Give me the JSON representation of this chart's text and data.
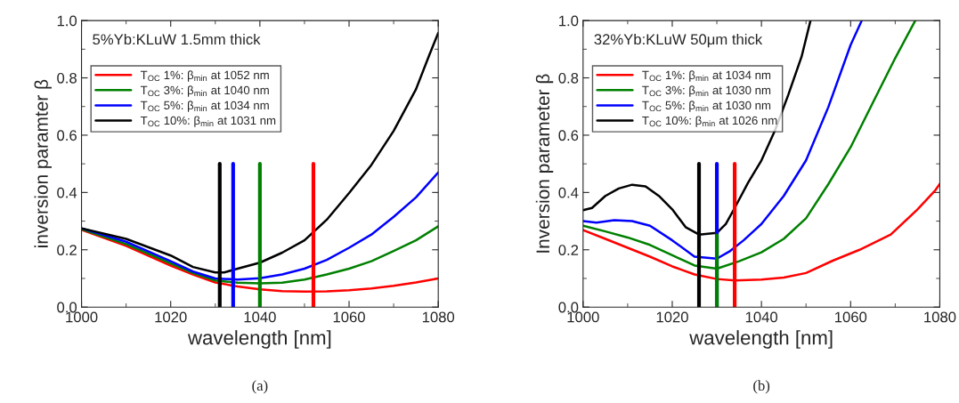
{
  "chart_data": [
    {
      "type": "line",
      "xlabel": "wavelength [nm]",
      "ylabel": "inversion paramter β",
      "annotations": [
        "5%Yb:KLuW 1.5mm thick",
        "(a)"
      ],
      "xlim": [
        1000,
        1080
      ],
      "xticks": [
        1000,
        1020,
        1040,
        1060,
        1080
      ],
      "ylim": [
        0,
        1
      ],
      "yticks": [
        {
          "value": 0,
          "label": "0.0"
        },
        {
          "value": 0.2,
          "label": "0.2"
        },
        {
          "value": 0.4,
          "label": "0.4"
        },
        {
          "value": 0.6,
          "label": "0.6"
        },
        {
          "value": 0.8,
          "label": "0.8"
        },
        {
          "value": 1,
          "label": "1.0"
        }
      ],
      "grid": false,
      "legend": "top left",
      "line_style": "solid",
      "marker": "none",
      "series": [
        {
          "name": "T$_{OC}$ 1%: β$_{min}$ at 1052 nm",
          "color": "#ff0000",
          "x": [
            1000,
            1010,
            1020,
            1025,
            1030,
            1035,
            1040,
            1045,
            1050,
            1055,
            1060,
            1065,
            1070,
            1075,
            1080
          ],
          "values": [
            0.27,
            0.214,
            0.145,
            0.114,
            0.086,
            0.072,
            0.062,
            0.056,
            0.054,
            0.055,
            0.059,
            0.065,
            0.074,
            0.086,
            0.1
          ]
        },
        {
          "name": "T$_{OC}$ 3%: β$_{min}$ at 1040 nm",
          "color": "#008000",
          "x": [
            1000,
            1010,
            1020,
            1025,
            1030,
            1035,
            1040,
            1045,
            1050,
            1055,
            1060,
            1065,
            1070,
            1075,
            1080
          ],
          "values": [
            0.272,
            0.22,
            0.152,
            0.119,
            0.093,
            0.085,
            0.083,
            0.085,
            0.096,
            0.114,
            0.134,
            0.16,
            0.196,
            0.233,
            0.282
          ]
        },
        {
          "name": "T$_{OC}$ 5%: β$_{min}$ at 1034 nm",
          "color": "#0000ff",
          "x": [
            1000,
            1010,
            1020,
            1025,
            1030,
            1035,
            1040,
            1045,
            1050,
            1055,
            1060,
            1065,
            1070,
            1075,
            1080
          ],
          "values": [
            0.275,
            0.228,
            0.16,
            0.124,
            0.1,
            0.096,
            0.101,
            0.114,
            0.134,
            0.165,
            0.207,
            0.253,
            0.315,
            0.383,
            0.47
          ]
        },
        {
          "name": "T$_{OC}$ 10%: β$_{min}$ at 1031 nm",
          "color": "#000000",
          "x": [
            1000,
            1010,
            1020,
            1025,
            1030,
            1032,
            1035,
            1040,
            1045,
            1050,
            1055,
            1060,
            1065,
            1070,
            1075,
            1078,
            1080
          ],
          "values": [
            0.275,
            0.238,
            0.18,
            0.14,
            0.121,
            0.121,
            0.134,
            0.155,
            0.19,
            0.233,
            0.305,
            0.398,
            0.496,
            0.615,
            0.76,
            0.88,
            0.957
          ]
        },
        {
          "color": "#000000",
          "x": [
            1031,
            1031
          ],
          "values": [
            0,
            0.5
          ]
        },
        {
          "color": "#0000ff",
          "x": [
            1034,
            1034
          ],
          "values": [
            0,
            0.5
          ]
        },
        {
          "color": "#008000",
          "x": [
            1040,
            1040
          ],
          "values": [
            0,
            0.5
          ]
        },
        {
          "color": "#ff0000",
          "x": [
            1052,
            1052
          ],
          "values": [
            0,
            0.5
          ]
        }
      ]
    },
    {
      "type": "line",
      "xlabel": "wavelength [nm]",
      "ylabel": "Inversion parameter β",
      "annotations": [
        "32%Yb:KLuW 50μm thick",
        "(b)"
      ],
      "xlim": [
        1000,
        1080
      ],
      "xticks": [
        1000,
        1020,
        1040,
        1060,
        1080
      ],
      "ylim": [
        0,
        1
      ],
      "yticks": [
        {
          "value": 0,
          "label": "0.0"
        },
        {
          "value": 0.2,
          "label": "0.2"
        },
        {
          "value": 0.4,
          "label": "0.4"
        },
        {
          "value": 0.6,
          "label": "0.6"
        },
        {
          "value": 0.8,
          "label": "0.8"
        },
        {
          "value": 1,
          "label": "1.0"
        }
      ],
      "grid": false,
      "legend": "top left",
      "line_style": "solid",
      "marker": "none",
      "series": [
        {
          "name": "T$_{OC}$ 1%: β$_{min}$ at 1034 nm",
          "color": "#ff0000",
          "x": [
            1000,
            1005,
            1010,
            1015,
            1020,
            1025,
            1030,
            1034,
            1040,
            1045,
            1050,
            1056,
            1062,
            1069,
            1075,
            1079,
            1080
          ],
          "values": [
            0.269,
            0.238,
            0.207,
            0.176,
            0.142,
            0.114,
            0.098,
            0.093,
            0.096,
            0.103,
            0.119,
            0.162,
            0.2,
            0.253,
            0.341,
            0.408,
            0.43
          ]
        },
        {
          "name": "T$_{OC}$ 3%: β$_{min}$ at 1030 nm",
          "color": "#008000",
          "x": [
            1000,
            1005,
            1010,
            1015,
            1020,
            1025,
            1030,
            1035,
            1040,
            1045,
            1050,
            1055,
            1060,
            1065,
            1070,
            1074.5
          ],
          "values": [
            0.284,
            0.264,
            0.243,
            0.217,
            0.181,
            0.145,
            0.134,
            0.16,
            0.191,
            0.238,
            0.31,
            0.429,
            0.558,
            0.714,
            0.869,
            1.0
          ]
        },
        {
          "name": "T$_{OC}$ 5%: β$_{min}$ at 1030 nm",
          "color": "#0000ff",
          "x": [
            1000,
            1003,
            1007,
            1011,
            1015,
            1020,
            1025,
            1030,
            1033,
            1036,
            1040,
            1045,
            1050,
            1055,
            1060,
            1062.5
          ],
          "values": [
            0.3,
            0.295,
            0.303,
            0.3,
            0.284,
            0.233,
            0.176,
            0.169,
            0.196,
            0.233,
            0.29,
            0.388,
            0.512,
            0.698,
            0.915,
            1.0
          ]
        },
        {
          "name": "T$_{OC}$ 10%: β$_{min}$ at 1026 nm",
          "color": "#000000",
          "x": [
            1000,
            1002,
            1005,
            1008,
            1011,
            1014,
            1017,
            1020,
            1023,
            1026,
            1030,
            1032,
            1034,
            1037,
            1040,
            1043,
            1046,
            1049,
            1051
          ],
          "values": [
            0.338,
            0.346,
            0.388,
            0.414,
            0.427,
            0.421,
            0.388,
            0.341,
            0.279,
            0.253,
            0.259,
            0.29,
            0.346,
            0.434,
            0.512,
            0.615,
            0.74,
            0.874,
            1.0
          ]
        },
        {
          "color": "#000000",
          "x": [
            1026,
            1026
          ],
          "values": [
            0,
            0.5
          ]
        },
        {
          "color": "#0000ff",
          "x": [
            1030,
            1030
          ],
          "values": [
            0,
            0.5
          ]
        },
        {
          "color": "#008000",
          "x": [
            1030,
            1030
          ],
          "values": [
            0,
            0.25
          ]
        },
        {
          "color": "#ff0000",
          "x": [
            1034,
            1034
          ],
          "values": [
            0,
            0.5
          ]
        }
      ]
    }
  ]
}
